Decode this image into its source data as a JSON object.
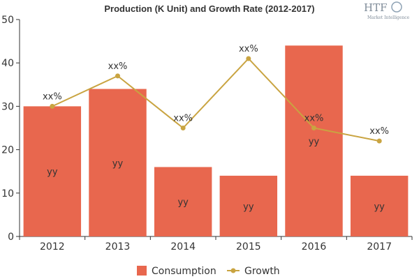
{
  "chart_data": {
    "type": "bar",
    "title": "Production (K Unit) and Growth Rate (2012-2017)",
    "categories": [
      "2012",
      "2013",
      "2014",
      "2015",
      "2016",
      "2017"
    ],
    "series": [
      {
        "name": "Consumption",
        "type": "bar",
        "color": "#e8674e",
        "values": [
          30,
          34,
          16,
          14,
          44,
          14
        ],
        "labels": [
          "yy",
          "yy",
          "yy",
          "yy",
          "yy",
          "yy"
        ]
      },
      {
        "name": "Growth",
        "type": "line",
        "color": "#c9a441",
        "values": [
          30,
          37,
          25,
          41,
          25,
          22
        ],
        "labels": [
          "xx%",
          "xx%",
          "xx%",
          "xx%",
          "xx%",
          "xx%"
        ]
      }
    ],
    "yticks": [
      0,
      10,
      20,
      30,
      40,
      50
    ],
    "ylim": [
      0,
      50
    ],
    "grid": false,
    "legend": "bottom"
  },
  "logo": {
    "text": "HTF",
    "subtext": "Market Intelligence"
  }
}
